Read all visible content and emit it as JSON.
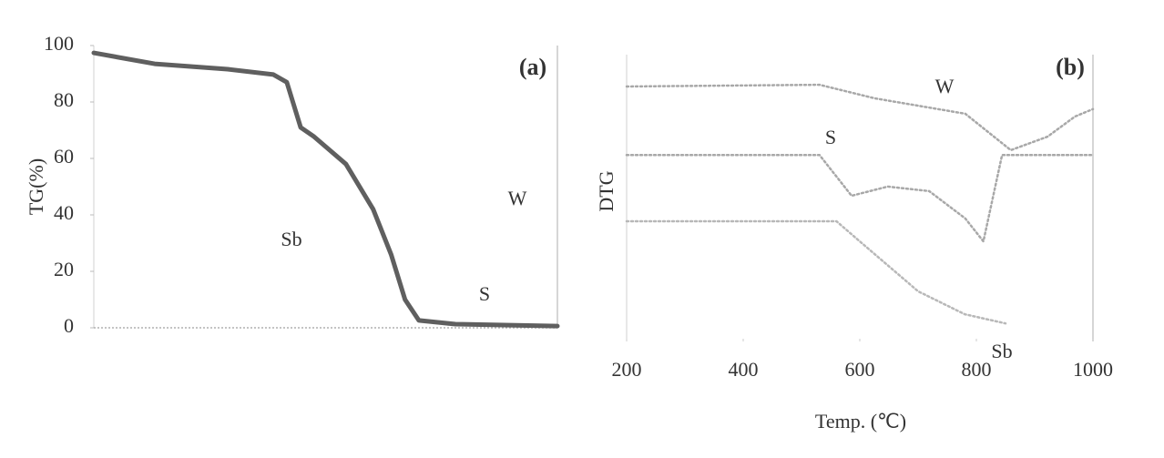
{
  "chart_data": [
    {
      "type": "line",
      "panel": "(a)",
      "y_label": "TG(%)",
      "xlim": [
        200,
        1000
      ],
      "ylim": [
        0,
        100
      ],
      "yticks": [
        0,
        20,
        40,
        60,
        80,
        100
      ],
      "series": [
        {
          "name": "Sb",
          "color": "#5f5f5f",
          "x": [
            200,
            305,
            431,
            510,
            533,
            557,
            580,
            635,
            682,
            713,
            737,
            761,
            824,
            1000
          ],
          "values": [
            97.4,
            93.5,
            91.6,
            89.7,
            87,
            71,
            67.7,
            58,
            42,
            26,
            10,
            2.6,
            1.3,
            0.6
          ]
        }
      ],
      "annotations": [
        "W",
        "S"
      ]
    },
    {
      "type": "line",
      "panel": "(b)",
      "y_label": "DTG",
      "x_label": "Temp. (℃)",
      "xlim": [
        200,
        1000
      ],
      "xticks": [
        200,
        400,
        600,
        800,
        1000
      ],
      "ylim": [
        0,
        100
      ],
      "series": [
        {
          "name": "W",
          "color": "#a8a8a8",
          "x": [
            200,
            531,
            625,
            781,
            859,
            922,
            969,
            1000
          ],
          "values": [
            88.9,
            89.5,
            84.8,
            79.4,
            66.7,
            71.4,
            78.4,
            81
          ]
        },
        {
          "name": "S",
          "color": "#a8a8a8",
          "x": [
            200,
            531,
            586,
            648,
            719,
            781,
            812,
            844,
            1000
          ],
          "values": [
            65,
            65,
            50.8,
            54,
            52.4,
            42.9,
            34.9,
            65,
            65
          ]
        },
        {
          "name": "Sb",
          "color": "#b8b8b8",
          "x": [
            200,
            500,
            560,
            600,
            700,
            780,
            850
          ],
          "values": [
            41.9,
            41.9,
            41.9,
            34.9,
            17.5,
            9.5,
            6.3
          ]
        }
      ]
    }
  ]
}
